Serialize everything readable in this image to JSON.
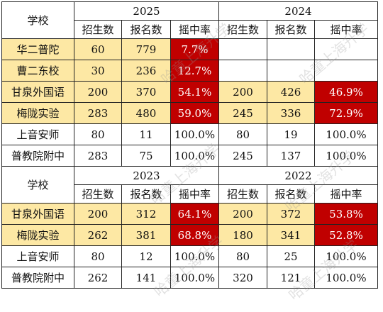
{
  "watermark": "哈童上海升学",
  "headers": {
    "school": "学校",
    "enroll": "招生数",
    "apply": "报名数",
    "rate": "摇中率"
  },
  "top": {
    "years": [
      "2025",
      "2024"
    ],
    "rows": [
      {
        "school": "华二普陀",
        "a": [
          "60",
          "779",
          "7.7%"
        ],
        "b": [
          "",
          "",
          ""
        ]
      },
      {
        "school": "曹二东校",
        "a": [
          "30",
          "236",
          "12.7%"
        ],
        "b": [
          "",
          "",
          ""
        ]
      },
      {
        "school": "甘泉外国语",
        "a": [
          "200",
          "370",
          "54.1%"
        ],
        "b": [
          "200",
          "426",
          "46.9%"
        ]
      },
      {
        "school": "梅陇实验",
        "a": [
          "283",
          "480",
          "59.0%"
        ],
        "b": [
          "245",
          "336",
          "72.9%"
        ]
      },
      {
        "school": "上音安师",
        "a": [
          "80",
          "11",
          "100.0%"
        ],
        "b": [
          "80",
          "19",
          "100.0%"
        ]
      },
      {
        "school": "普教院附中",
        "a": [
          "283",
          "75",
          "100.0%"
        ],
        "b": [
          "245",
          "137",
          "100.0%"
        ]
      }
    ]
  },
  "bottom": {
    "years": [
      "2023",
      "2022"
    ],
    "rows": [
      {
        "school": "甘泉外国语",
        "a": [
          "200",
          "312",
          "64.1%"
        ],
        "b": [
          "200",
          "372",
          "53.8%"
        ]
      },
      {
        "school": "梅陇实验",
        "a": [
          "262",
          "381",
          "68.8%"
        ],
        "b": [
          "180",
          "341",
          "52.8%"
        ]
      },
      {
        "school": "上音安师",
        "a": [
          "80",
          "12",
          "100.0%"
        ],
        "b": [
          "80",
          "25",
          "100.0%"
        ]
      },
      {
        "school": "普教院附中",
        "a": [
          "262",
          "141",
          "100.0%"
        ],
        "b": [
          "320",
          "121",
          "100.0%"
        ]
      }
    ]
  }
}
